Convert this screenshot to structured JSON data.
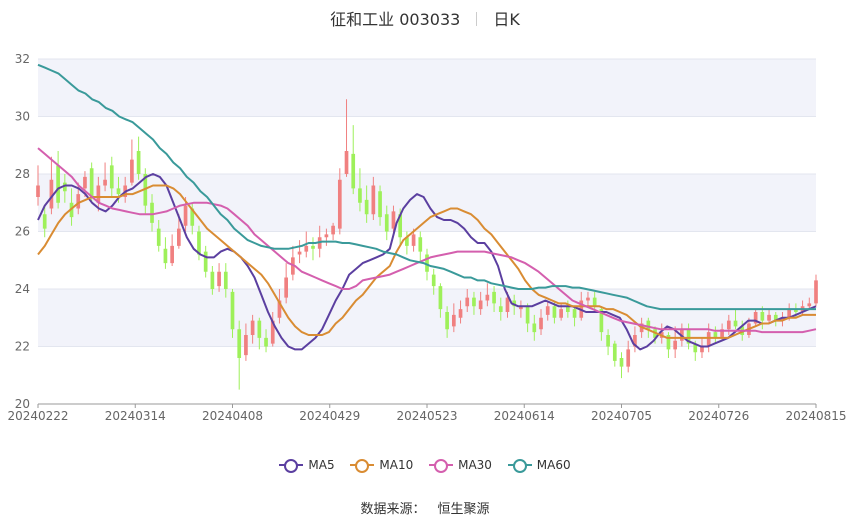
{
  "header": {
    "stock": "征和工业 003033",
    "period": "日K"
  },
  "source": {
    "label": "数据来源：",
    "value": "恒生聚源"
  },
  "colors": {
    "up": "#f08080",
    "down": "#9ef05a",
    "MA5": "#5b3fa0",
    "MA10": "#d98c33",
    "MA30": "#d45fae",
    "MA60": "#3a9a9a",
    "band": "#f2f3fa",
    "grid": "#e3e6ef"
  },
  "chart_data": {
    "type": "candlestick",
    "title": "征和工业 003033 日K",
    "ylim": [
      20,
      32
    ],
    "yticks": [
      20,
      22,
      24,
      26,
      28,
      30,
      32
    ],
    "xtick_labels": [
      "20240222",
      "20240314",
      "20240408",
      "20240429",
      "20240523",
      "20240614",
      "20240705",
      "20240726",
      "20240815"
    ],
    "legend_position": "bottom",
    "legend": [
      "MA5",
      "MA10",
      "MA30",
      "MA60"
    ],
    "candles": [
      [
        27.2,
        27.6,
        28.3,
        26.9
      ],
      [
        26.6,
        26.1,
        26.9,
        25.8
      ],
      [
        26.8,
        27.8,
        28.6,
        26.6
      ],
      [
        28.3,
        27.0,
        28.8,
        26.8
      ],
      [
        27.7,
        27.4,
        28.0,
        27.0
      ],
      [
        27.0,
        26.5,
        27.5,
        26.2
      ],
      [
        26.8,
        27.3,
        27.7,
        26.6
      ],
      [
        27.5,
        27.9,
        28.1,
        27.2
      ],
      [
        28.2,
        27.2,
        28.4,
        27.0
      ],
      [
        27.0,
        27.6,
        27.9,
        26.7
      ],
      [
        27.6,
        27.8,
        28.4,
        27.4
      ],
      [
        28.3,
        27.5,
        28.6,
        27.2
      ],
      [
        27.5,
        27.3,
        27.9,
        27.0
      ],
      [
        27.2,
        27.6,
        27.9,
        27.0
      ],
      [
        27.7,
        28.5,
        29.2,
        27.6
      ],
      [
        28.8,
        28.0,
        29.3,
        27.8
      ],
      [
        28.0,
        26.9,
        28.2,
        26.6
      ],
      [
        27.0,
        26.3,
        27.3,
        26.0
      ],
      [
        26.1,
        25.5,
        26.4,
        25.3
      ],
      [
        25.4,
        24.9,
        25.8,
        24.7
      ],
      [
        24.9,
        25.5,
        25.9,
        24.8
      ],
      [
        25.5,
        26.1,
        26.6,
        25.4
      ],
      [
        26.2,
        26.9,
        27.2,
        26.0
      ],
      [
        26.8,
        26.2,
        27.0,
        25.9
      ],
      [
        26.0,
        25.2,
        26.2,
        25.0
      ],
      [
        25.3,
        24.6,
        25.5,
        24.4
      ],
      [
        24.6,
        24.0,
        24.8,
        23.8
      ],
      [
        24.1,
        24.6,
        24.9,
        23.9
      ],
      [
        24.6,
        24.0,
        24.9,
        23.7
      ],
      [
        23.9,
        22.6,
        24.0,
        22.3
      ],
      [
        22.6,
        21.6,
        22.9,
        20.5
      ],
      [
        21.7,
        22.4,
        22.8,
        21.5
      ],
      [
        22.4,
        22.9,
        23.1,
        22.1
      ],
      [
        22.9,
        22.3,
        23.0,
        21.9
      ],
      [
        22.3,
        22.0,
        22.6,
        21.8
      ],
      [
        22.1,
        22.9,
        23.2,
        22.0
      ],
      [
        23.0,
        23.6,
        24.0,
        22.8
      ],
      [
        23.7,
        24.4,
        24.9,
        23.5
      ],
      [
        24.5,
        25.1,
        25.5,
        24.3
      ],
      [
        25.2,
        25.3,
        25.7,
        24.9
      ],
      [
        25.3,
        25.5,
        26.0,
        25.1
      ],
      [
        25.5,
        25.4,
        25.8,
        25.0
      ],
      [
        25.4,
        25.8,
        26.2,
        25.1
      ],
      [
        25.8,
        25.9,
        26.1,
        25.5
      ],
      [
        25.9,
        26.2,
        26.3,
        25.7
      ],
      [
        26.1,
        27.8,
        28.2,
        25.9
      ],
      [
        28.0,
        28.8,
        30.6,
        27.9
      ],
      [
        28.7,
        27.5,
        29.7,
        27.3
      ],
      [
        27.5,
        27.0,
        28.2,
        26.7
      ],
      [
        27.1,
        26.6,
        27.6,
        26.3
      ],
      [
        26.6,
        27.6,
        27.9,
        26.4
      ],
      [
        27.4,
        26.5,
        27.6,
        26.2
      ],
      [
        26.6,
        26.0,
        26.9,
        25.7
      ],
      [
        26.1,
        26.7,
        26.9,
        25.8
      ],
      [
        26.6,
        25.8,
        26.8,
        25.5
      ],
      [
        25.8,
        25.5,
        26.0,
        25.2
      ],
      [
        25.5,
        25.9,
        26.1,
        25.3
      ],
      [
        25.8,
        25.3,
        26.0,
        24.9
      ],
      [
        25.2,
        24.6,
        25.4,
        24.3
      ],
      [
        24.5,
        24.1,
        24.7,
        23.8
      ],
      [
        24.1,
        23.3,
        24.2,
        23.0
      ],
      [
        23.2,
        22.6,
        23.4,
        22.3
      ],
      [
        22.7,
        23.1,
        23.5,
        22.5
      ],
      [
        23.0,
        23.3,
        23.6,
        22.8
      ],
      [
        23.4,
        23.7,
        24.0,
        23.2
      ],
      [
        23.7,
        23.4,
        23.9,
        23.1
      ],
      [
        23.3,
        23.6,
        23.9,
        23.1
      ],
      [
        23.6,
        23.8,
        24.2,
        23.4
      ],
      [
        23.9,
        23.5,
        24.1,
        23.2
      ],
      [
        23.4,
        23.2,
        23.7,
        22.9
      ],
      [
        23.2,
        23.7,
        23.9,
        23.0
      ],
      [
        23.6,
        23.4,
        23.8,
        23.1
      ],
      [
        23.3,
        23.4,
        23.6,
        23.0
      ],
      [
        23.4,
        22.8,
        23.5,
        22.5
      ],
      [
        22.8,
        22.5,
        23.1,
        22.2
      ],
      [
        22.6,
        23.0,
        23.3,
        22.4
      ],
      [
        23.1,
        23.4,
        23.6,
        22.9
      ],
      [
        23.4,
        23.0,
        23.6,
        22.8
      ],
      [
        23.0,
        23.3,
        23.5,
        22.9
      ],
      [
        23.4,
        23.2,
        23.6,
        23.0
      ],
      [
        23.3,
        23.0,
        23.4,
        22.7
      ],
      [
        23.0,
        23.6,
        23.9,
        22.9
      ],
      [
        23.6,
        23.7,
        23.9,
        23.4
      ],
      [
        23.7,
        23.4,
        23.9,
        23.2
      ],
      [
        23.3,
        22.5,
        23.4,
        22.2
      ],
      [
        22.4,
        22.0,
        22.6,
        21.7
      ],
      [
        22.1,
        21.5,
        22.2,
        21.3
      ],
      [
        21.6,
        21.3,
        21.8,
        20.9
      ],
      [
        21.3,
        21.9,
        22.2,
        21.1
      ],
      [
        22.0,
        22.4,
        22.7,
        21.8
      ],
      [
        22.5,
        22.8,
        23.0,
        22.3
      ],
      [
        22.9,
        22.6,
        23.0,
        22.3
      ],
      [
        22.6,
        22.3,
        22.7,
        22.1
      ],
      [
        22.3,
        22.5,
        22.8,
        22.1
      ],
      [
        22.4,
        21.9,
        22.5,
        21.6
      ],
      [
        21.9,
        22.2,
        22.7,
        21.6
      ],
      [
        22.2,
        22.6,
        22.8,
        22.0
      ],
      [
        22.6,
        22.1,
        22.8,
        21.9
      ],
      [
        22.1,
        21.8,
        22.2,
        21.5
      ],
      [
        21.8,
        22.0,
        22.3,
        21.6
      ],
      [
        22.0,
        22.5,
        22.8,
        21.8
      ],
      [
        22.5,
        22.3,
        22.7,
        22.1
      ],
      [
        22.3,
        22.6,
        22.8,
        22.2
      ],
      [
        22.6,
        22.9,
        23.1,
        22.4
      ],
      [
        22.9,
        22.7,
        23.3,
        22.6
      ],
      [
        22.7,
        22.4,
        22.9,
        22.2
      ],
      [
        22.4,
        22.8,
        23.0,
        22.3
      ],
      [
        22.8,
        23.2,
        23.3,
        22.7
      ],
      [
        23.2,
        22.9,
        23.4,
        22.6
      ],
      [
        22.9,
        23.1,
        23.3,
        22.8
      ],
      [
        23.1,
        22.9,
        23.2,
        22.7
      ],
      [
        22.9,
        23.0,
        23.2,
        22.7
      ],
      [
        23.0,
        23.3,
        23.5,
        22.9
      ],
      [
        23.3,
        23.2,
        23.5,
        23.0
      ],
      [
        23.2,
        23.4,
        23.6,
        23.1
      ],
      [
        23.4,
        23.5,
        23.7,
        23.3
      ],
      [
        23.5,
        24.3,
        24.5,
        23.4
      ]
    ],
    "series": [
      {
        "name": "MA5",
        "values": [
          26.4,
          26.9,
          27.2,
          27.5,
          27.6,
          27.6,
          27.5,
          27.3,
          27.0,
          26.8,
          26.7,
          26.9,
          27.2,
          27.4,
          27.5,
          27.7,
          27.9,
          28.0,
          27.9,
          27.6,
          27.0,
          26.4,
          25.8,
          25.4,
          25.2,
          25.1,
          25.1,
          25.3,
          25.4,
          25.3,
          25.1,
          24.8,
          24.4,
          23.8,
          23.2,
          22.7,
          22.3,
          22.0,
          21.9,
          21.9,
          22.1,
          22.3,
          22.6,
          23.1,
          23.6,
          24.0,
          24.5,
          24.7,
          24.9,
          25.0,
          25.1,
          25.2,
          25.4,
          26.3,
          26.8,
          27.1,
          27.3,
          27.2,
          26.8,
          26.5,
          26.4,
          26.4,
          26.3,
          26.1,
          25.8,
          25.6,
          25.6,
          25.3,
          24.8,
          24.0,
          23.5,
          23.4,
          23.4,
          23.4,
          23.5,
          23.6,
          23.5,
          23.4,
          23.4,
          23.4,
          23.3,
          23.2,
          23.2,
          23.2,
          23.2,
          23.1,
          23.0,
          22.6,
          22.1,
          21.9,
          22.0,
          22.2,
          22.5,
          22.7,
          22.6,
          22.4,
          22.2,
          22.1,
          22.0,
          22.0,
          22.1,
          22.2,
          22.3,
          22.5,
          22.7,
          22.9,
          22.9,
          22.8,
          22.8,
          22.9,
          23.0,
          23.0,
          23.1,
          23.2,
          23.3,
          23.4
        ]
      },
      {
        "name": "MA10",
        "values": [
          25.2,
          25.5,
          25.9,
          26.3,
          26.6,
          26.8,
          27.0,
          27.1,
          27.2,
          27.2,
          27.2,
          27.2,
          27.2,
          27.3,
          27.3,
          27.4,
          27.5,
          27.6,
          27.6,
          27.6,
          27.5,
          27.3,
          27.0,
          26.7,
          26.4,
          26.1,
          25.9,
          25.7,
          25.5,
          25.3,
          25.1,
          24.9,
          24.7,
          24.5,
          24.2,
          23.8,
          23.4,
          23.0,
          22.7,
          22.5,
          22.4,
          22.4,
          22.4,
          22.5,
          22.8,
          23.0,
          23.3,
          23.6,
          23.8,
          24.1,
          24.4,
          24.6,
          24.8,
          25.3,
          25.7,
          25.9,
          26.1,
          26.3,
          26.5,
          26.6,
          26.7,
          26.8,
          26.8,
          26.7,
          26.6,
          26.4,
          26.1,
          25.9,
          25.6,
          25.3,
          25.0,
          24.7,
          24.3,
          24.0,
          23.8,
          23.7,
          23.6,
          23.5,
          23.5,
          23.4,
          23.4,
          23.4,
          23.4,
          23.4,
          23.3,
          23.3,
          23.2,
          23.1,
          22.9,
          22.7,
          22.6,
          22.5,
          22.4,
          22.3,
          22.3,
          22.3,
          22.3,
          22.3,
          22.3,
          22.3,
          22.3,
          22.3,
          22.3,
          22.4,
          22.5,
          22.6,
          22.7,
          22.8,
          22.8,
          22.9,
          22.9,
          23.0,
          23.0,
          23.1,
          23.1,
          23.1
        ]
      },
      {
        "name": "MA30",
        "values": [
          28.9,
          28.7,
          28.5,
          28.3,
          28.1,
          27.9,
          27.6,
          27.4,
          27.2,
          27.0,
          26.9,
          26.8,
          26.75,
          26.7,
          26.65,
          26.6,
          26.6,
          26.6,
          26.65,
          26.7,
          26.8,
          26.9,
          26.95,
          27.0,
          27.0,
          27.0,
          26.95,
          26.9,
          26.8,
          26.6,
          26.4,
          26.2,
          25.9,
          25.7,
          25.5,
          25.3,
          25.1,
          24.9,
          24.8,
          24.6,
          24.5,
          24.4,
          24.3,
          24.2,
          24.1,
          24.0,
          24.0,
          24.1,
          24.3,
          24.35,
          24.4,
          24.45,
          24.5,
          24.6,
          24.7,
          24.8,
          24.9,
          25.0,
          25.1,
          25.15,
          25.2,
          25.25,
          25.3,
          25.3,
          25.3,
          25.3,
          25.3,
          25.25,
          25.2,
          25.15,
          25.1,
          25.0,
          24.9,
          24.75,
          24.6,
          24.4,
          24.2,
          24.0,
          23.8,
          23.6,
          23.5,
          23.4,
          23.3,
          23.2,
          23.1,
          23.0,
          22.9,
          22.85,
          22.8,
          22.75,
          22.7,
          22.65,
          22.6,
          22.6,
          22.6,
          22.6,
          22.6,
          22.6,
          22.6,
          22.6,
          22.55,
          22.55,
          22.55,
          22.55,
          22.55,
          22.55,
          22.55,
          22.5,
          22.5,
          22.5,
          22.5,
          22.5,
          22.5,
          22.5,
          22.55,
          22.6
        ]
      },
      {
        "name": "MA60",
        "values": [
          31.8,
          31.7,
          31.6,
          31.5,
          31.3,
          31.1,
          30.9,
          30.8,
          30.6,
          30.5,
          30.3,
          30.2,
          30.0,
          29.9,
          29.8,
          29.6,
          29.4,
          29.2,
          28.9,
          28.7,
          28.4,
          28.2,
          27.9,
          27.7,
          27.4,
          27.2,
          26.9,
          26.6,
          26.4,
          26.1,
          25.9,
          25.7,
          25.6,
          25.5,
          25.45,
          25.4,
          25.4,
          25.4,
          25.45,
          25.5,
          25.6,
          25.6,
          25.65,
          25.65,
          25.65,
          25.6,
          25.6,
          25.55,
          25.5,
          25.45,
          25.4,
          25.3,
          25.25,
          25.2,
          25.1,
          25.0,
          24.95,
          24.9,
          24.8,
          24.75,
          24.7,
          24.6,
          24.5,
          24.4,
          24.4,
          24.3,
          24.3,
          24.2,
          24.15,
          24.1,
          24.05,
          24.0,
          24.0,
          24.0,
          24.05,
          24.05,
          24.1,
          24.1,
          24.1,
          24.05,
          24.05,
          24.0,
          23.95,
          23.9,
          23.85,
          23.8,
          23.75,
          23.7,
          23.6,
          23.5,
          23.4,
          23.35,
          23.3,
          23.3,
          23.3,
          23.3,
          23.3,
          23.3,
          23.3,
          23.3,
          23.3,
          23.3,
          23.3,
          23.3,
          23.3,
          23.3,
          23.3,
          23.3,
          23.3,
          23.3,
          23.3,
          23.3,
          23.3,
          23.3,
          23.3,
          23.3
        ]
      }
    ]
  }
}
